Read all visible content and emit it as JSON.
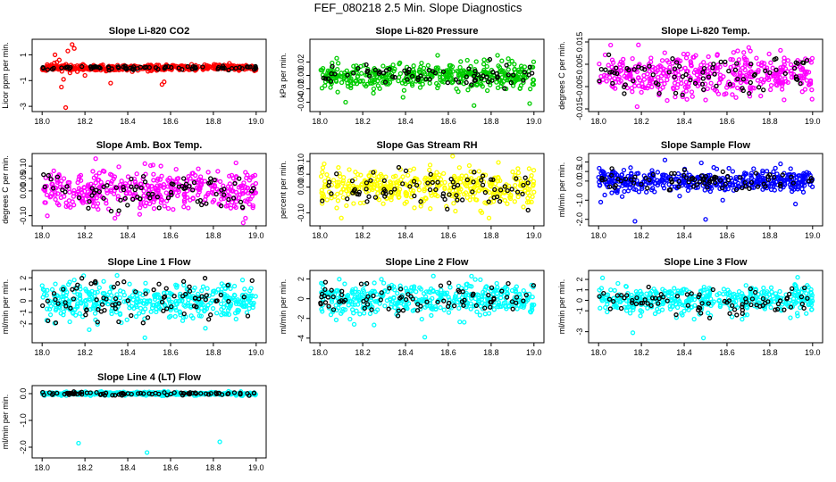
{
  "page": {
    "title": "FEF_080218  2.5 Min. Slope Diagnostics"
  },
  "chart_data": [
    {
      "type": "scatter",
      "title": "Slope Li-820 CO2",
      "ylabel": "Licor ppm per min.",
      "xlim": [
        17.97,
        19.03
      ],
      "ylim": [
        -3.2,
        2.0
      ],
      "xticks": [
        "18.0",
        "18.2",
        "18.4",
        "18.6",
        "18.8",
        "19.0"
      ],
      "xtick_values": [
        18.0,
        18.2,
        18.4,
        18.6,
        18.8,
        19.0
      ],
      "yticks": [
        "-3",
        "-1",
        "1"
      ],
      "ytick_values": [
        -3,
        -1,
        1
      ],
      "color": "#ff0000",
      "secondary_color": "#000000",
      "spread": 0.12,
      "seed": 11,
      "npoints": 420,
      "nblack": 80,
      "blackspread": 0.08,
      "outliers": [
        [
          18.06,
          1.0
        ],
        [
          18.08,
          0.6
        ],
        [
          18.1,
          -0.9
        ],
        [
          18.12,
          1.3
        ],
        [
          18.14,
          1.8
        ],
        [
          18.15,
          1.5
        ],
        [
          18.11,
          -3.1
        ],
        [
          18.09,
          -1.5
        ],
        [
          18.56,
          -1.3
        ],
        [
          18.57,
          -1.1
        ],
        [
          18.32,
          -1.2
        ],
        [
          18.2,
          -0.6
        ],
        [
          18.13,
          -0.4
        ]
      ]
    },
    {
      "type": "scatter",
      "title": "Slope Li-820 Pressure",
      "ylabel": "kPa per min.",
      "xlim": [
        17.97,
        19.03
      ],
      "ylim": [
        -0.05,
        0.05
      ],
      "xticks": [
        "18.0",
        "18.2",
        "18.4",
        "18.6",
        "18.8",
        "19.0"
      ],
      "xtick_values": [
        18.0,
        18.2,
        18.4,
        18.6,
        18.8,
        19.0
      ],
      "yticks": [
        "-0.04",
        "-0.02",
        "0.00",
        "0.02"
      ],
      "ytick_values": [
        -0.04,
        -0.02,
        0.0,
        0.02
      ],
      "color": "#00cc00",
      "secondary_color": "#000000",
      "spread": 0.009,
      "seed": 23,
      "npoints": 420,
      "nblack": 70,
      "blackspread": 0.007,
      "outliers": [
        [
          18.12,
          -0.04
        ],
        [
          18.98,
          -0.042
        ],
        [
          18.83,
          0.03
        ],
        [
          18.72,
          -0.045
        ],
        [
          18.55,
          0.03
        ],
        [
          18.88,
          0.025
        ],
        [
          18.87,
          -0.02
        ]
      ]
    },
    {
      "type": "scatter",
      "title": "Slope Li-820 Temp.",
      "ylabel": "degrees C per min.",
      "xlim": [
        17.97,
        19.03
      ],
      "ylim": [
        -0.015,
        0.015
      ],
      "xticks": [
        "18.0",
        "18.2",
        "18.4",
        "18.6",
        "18.8",
        "19.0"
      ],
      "xtick_values": [
        18.0,
        18.2,
        18.4,
        18.6,
        18.8,
        19.0
      ],
      "yticks": [
        "-0.015",
        "-0.005",
        "0.005",
        "0.015"
      ],
      "ytick_values": [
        -0.015,
        -0.005,
        0.005,
        0.015
      ],
      "color": "#ff00ff",
      "secondary_color": "#000000",
      "spread": 0.0045,
      "seed": 37,
      "npoints": 420,
      "nblack": 80,
      "blackspread": 0.004,
      "outliers": [
        [
          18.18,
          -0.014
        ],
        [
          18.5,
          -0.011
        ],
        [
          18.65,
          0.011
        ]
      ]
    },
    {
      "type": "scatter",
      "title": "Slope Amb. Box Temp.",
      "ylabel": "degrees C per min.",
      "xlim": [
        17.97,
        19.03
      ],
      "ylim": [
        -0.13,
        0.14
      ],
      "xticks": [
        "18.0",
        "18.2",
        "18.4",
        "18.6",
        "18.8",
        "19.0"
      ],
      "xtick_values": [
        18.0,
        18.2,
        18.4,
        18.6,
        18.8,
        19.0
      ],
      "yticks": [
        "-0.10",
        "0.00",
        "0.05",
        "0.10"
      ],
      "ytick_values": [
        -0.1,
        0.0,
        0.05,
        0.1
      ],
      "color": "#ff00ff",
      "secondary_color": "#000000",
      "spread": 0.04,
      "seed": 41,
      "npoints": 420,
      "nblack": 80,
      "blackspread": 0.035,
      "outliers": [
        [
          18.25,
          0.13
        ],
        [
          18.34,
          -0.11
        ],
        [
          18.48,
          0.11
        ],
        [
          18.95,
          -0.11
        ]
      ]
    },
    {
      "type": "scatter",
      "title": "Slope Gas Stream RH",
      "ylabel": "percent per min.",
      "xlim": [
        17.97,
        19.03
      ],
      "ylim": [
        -0.14,
        0.12
      ],
      "xticks": [
        "18.0",
        "18.2",
        "18.4",
        "18.6",
        "18.8",
        "19.0"
      ],
      "xtick_values": [
        18.0,
        18.2,
        18.4,
        18.6,
        18.8,
        19.0
      ],
      "yticks": [
        "-0.10",
        "0.00",
        "0.05",
        "0.10"
      ],
      "ytick_values": [
        -0.1,
        0.0,
        0.05,
        0.1
      ],
      "color": "#ffff00",
      "secondary_color": "#000000",
      "spread": 0.035,
      "seed": 53,
      "npoints": 420,
      "nblack": 80,
      "blackspread": 0.035,
      "outliers": [
        [
          18.62,
          0.12
        ],
        [
          18.1,
          -0.12
        ],
        [
          18.79,
          -0.12
        ],
        [
          18.02,
          0.09
        ]
      ]
    },
    {
      "type": "scatter",
      "title": "Slope Sample Flow",
      "ylabel": "ml/min per min.",
      "xlim": [
        17.97,
        19.03
      ],
      "ylim": [
        -2.2,
        1.3
      ],
      "xticks": [
        "18.0",
        "18.2",
        "18.4",
        "18.6",
        "18.8",
        "19.0"
      ],
      "xtick_values": [
        18.0,
        18.2,
        18.4,
        18.6,
        18.8,
        19.0
      ],
      "yticks": [
        "-2.0",
        "-1.0",
        "0.0",
        "0.5",
        "1.0"
      ],
      "ytick_values": [
        -2,
        -1,
        0,
        0.5,
        1
      ],
      "color": "#0000ff",
      "secondary_color": "#000000",
      "spread": 0.25,
      "seed": 67,
      "npoints": 420,
      "nblack": 80,
      "blackspread": 0.25,
      "outliers": [
        [
          18.17,
          -2.1
        ],
        [
          18.5,
          -2.0
        ],
        [
          18.31,
          1.1
        ],
        [
          18.48,
          0.95
        ],
        [
          18.85,
          0.9
        ],
        [
          18.92,
          -1.2
        ],
        [
          18.01,
          -1.1
        ],
        [
          18.58,
          -1.0
        ]
      ]
    },
    {
      "type": "scatter",
      "title": "Slope Line 1 Flow",
      "ylabel": "ml/min per min.",
      "xlim": [
        17.97,
        19.03
      ],
      "ylim": [
        -3.4,
        2.4
      ],
      "xticks": [
        "18.0",
        "18.2",
        "18.4",
        "18.6",
        "18.8",
        "19.0"
      ],
      "xtick_values": [
        18.0,
        18.2,
        18.4,
        18.6,
        18.8,
        19.0
      ],
      "yticks": [
        "-2",
        "-1",
        "0",
        "1",
        "2"
      ],
      "ytick_values": [
        -2,
        -1,
        0,
        1,
        2
      ],
      "color": "#00ffff",
      "secondary_color": "#000000",
      "spread": 0.75,
      "seed": 71,
      "npoints": 420,
      "nblack": 80,
      "blackspread": 0.75,
      "outliers": [
        [
          18.48,
          -3.2
        ],
        [
          18.15,
          1.8
        ],
        [
          18.35,
          2.2
        ],
        [
          18.22,
          -2.5
        ]
      ]
    },
    {
      "type": "scatter",
      "title": "Slope Line 2 Flow",
      "ylabel": "ml/min per min.",
      "xlim": [
        17.97,
        19.03
      ],
      "ylim": [
        -4.2,
        2.6
      ],
      "xticks": [
        "18.0",
        "18.2",
        "18.4",
        "18.6",
        "18.8",
        "19.0"
      ],
      "xtick_values": [
        18.0,
        18.2,
        18.4,
        18.6,
        18.8,
        19.0
      ],
      "yticks": [
        "-4",
        "-2",
        "0",
        "2"
      ],
      "ytick_values": [
        -4,
        -2,
        0,
        2
      ],
      "color": "#00ffff",
      "secondary_color": "#000000",
      "spread": 0.8,
      "seed": 83,
      "npoints": 420,
      "nblack": 80,
      "blackspread": 0.8,
      "outliers": [
        [
          18.49,
          -3.9
        ],
        [
          18.16,
          -2.6
        ],
        [
          18.53,
          2.3
        ]
      ]
    },
    {
      "type": "scatter",
      "title": "Slope Line 3 Flow",
      "ylabel": "ml/min per min.",
      "xlim": [
        17.97,
        19.03
      ],
      "ylim": [
        -3.8,
        2.6
      ],
      "xticks": [
        "18.0",
        "18.2",
        "18.4",
        "18.6",
        "18.8",
        "19.0"
      ],
      "xtick_values": [
        18.0,
        18.2,
        18.4,
        18.6,
        18.8,
        19.0
      ],
      "yticks": [
        "-3",
        "-1",
        "0",
        "1",
        "2"
      ],
      "ytick_values": [
        -3,
        -1,
        0,
        1,
        2
      ],
      "color": "#00ffff",
      "secondary_color": "#000000",
      "spread": 0.7,
      "seed": 97,
      "npoints": 420,
      "nblack": 80,
      "blackspread": 0.7,
      "outliers": [
        [
          18.16,
          -3.1
        ],
        [
          18.49,
          -3.6
        ],
        [
          18.93,
          2.2
        ]
      ]
    },
    {
      "type": "scatter",
      "title": "Slope Line 4 (LT) Flow",
      "ylabel": "ml/min per min.",
      "xlim": [
        17.97,
        19.03
      ],
      "ylim": [
        -2.3,
        0.2
      ],
      "xticks": [
        "18.0",
        "18.2",
        "18.4",
        "18.6",
        "18.8",
        "19.0"
      ],
      "xtick_values": [
        18.0,
        18.2,
        18.4,
        18.6,
        18.8,
        19.0
      ],
      "yticks": [
        "-2.0",
        "-1.0",
        "0.0"
      ],
      "ytick_values": [
        -2,
        -1,
        0
      ],
      "color": "#00ffff",
      "secondary_color": "#000000",
      "spread": 0.03,
      "seed": 101,
      "npoints": 420,
      "nblack": 80,
      "blackspread": 0.03,
      "outliers": [
        [
          18.17,
          -1.85
        ],
        [
          18.49,
          -2.2
        ],
        [
          18.83,
          -1.8
        ]
      ]
    }
  ]
}
